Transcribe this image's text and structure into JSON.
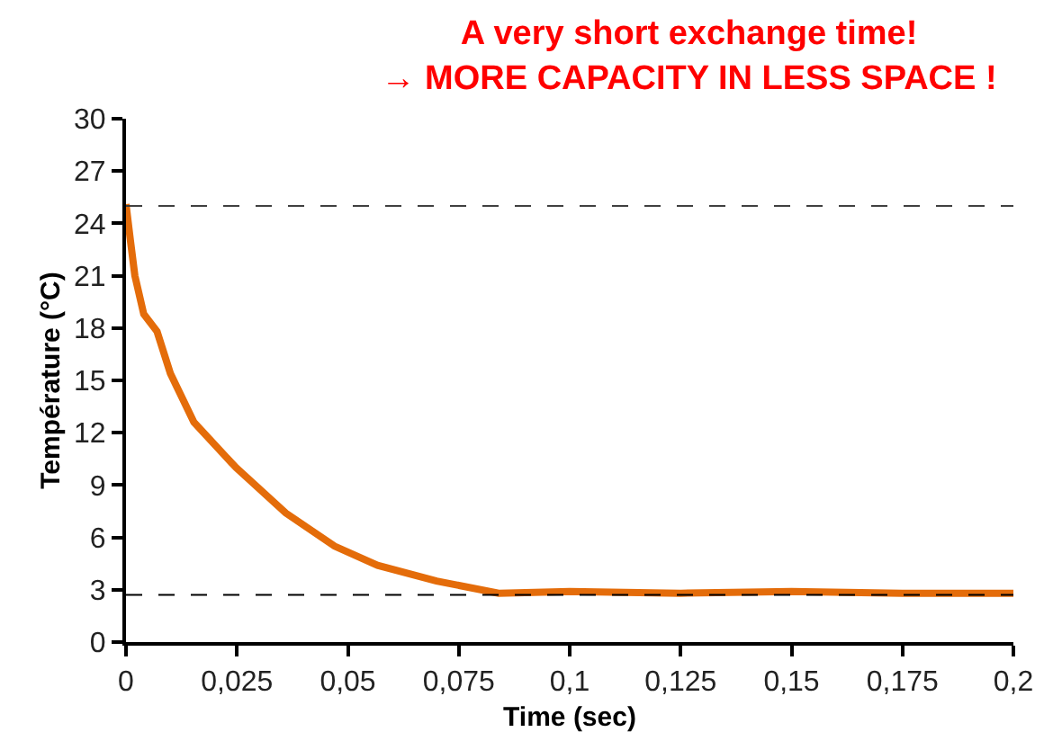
{
  "chart_data": {
    "type": "line",
    "title": "A very short exchange time!\n→ MORE CAPACITY IN LESS SPACE !",
    "xlabel": "Time (sec)",
    "ylabel": "Température (°C)",
    "x": [
      0,
      0.001,
      0.002,
      0.004,
      0.007,
      0.01,
      0.0153,
      0.0248,
      0.036,
      0.047,
      0.0567,
      0.07,
      0.084,
      0.1,
      0.125,
      0.15,
      0.175,
      0.2
    ],
    "series": [
      {
        "color": "#e46c0a",
        "values": [
          25.1,
          23,
          21,
          18.8,
          17.8,
          15.4,
          12.6,
          10.0,
          7.4,
          5.5,
          4.4,
          3.5,
          2.8,
          2.9,
          2.8,
          2.9,
          2.8,
          2.8
        ]
      }
    ],
    "xlim": [
      0,
      0.2
    ],
    "xticks": [
      0,
      {
        "value": 0.025,
        "label": "0,025"
      },
      {
        "value": 0.05,
        "label": "0,05"
      },
      {
        "value": 0.075,
        "label": "0,075"
      },
      {
        "value": 0.1,
        "label": "0,1"
      },
      {
        "value": 0.125,
        "label": "0,125"
      },
      {
        "value": 0.15,
        "label": "0,15"
      },
      {
        "value": 0.175,
        "label": "0,175"
      },
      {
        "value": 0.2,
        "label": "0,2"
      }
    ],
    "ylim": [
      0,
      30
    ],
    "yticks": [
      0,
      3,
      6,
      9,
      12,
      15,
      18,
      21,
      24,
      27,
      30
    ],
    "ref_lines": [
      {
        "axis": "y",
        "value": 25,
        "color": "#404040",
        "line_style": "dashed"
      },
      {
        "axis": "y",
        "value": 2.7,
        "color": "#000000",
        "line_style": "dashed"
      }
    ],
    "grid": false,
    "marker": "none",
    "line_style": "solid"
  }
}
